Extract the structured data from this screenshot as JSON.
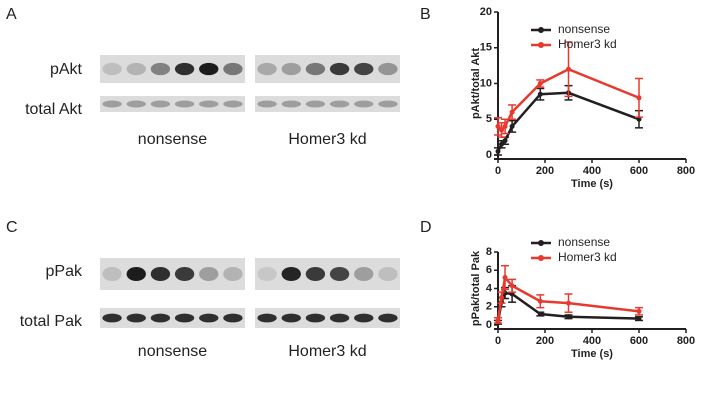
{
  "blots": [
    {
      "letter": "A",
      "rows": [
        "pAkt",
        "total Akt"
      ],
      "groups": [
        "nonsense",
        "Homer3 kd"
      ]
    },
    {
      "letter": "C",
      "rows": [
        "pPak",
        "total Pak"
      ],
      "groups": [
        "nonsense",
        "Homer3 kd"
      ]
    }
  ],
  "chart_data": [
    {
      "type": "line",
      "label": "B",
      "ylabel": "pAkt/total Akt",
      "xlabel": "Time (s)",
      "x": [
        0,
        15,
        30,
        60,
        180,
        300,
        600
      ],
      "series": [
        {
          "name": "nonsense",
          "color": "#231f20",
          "values": [
            0.5,
            1.5,
            2,
            4,
            8.5,
            8.7,
            5
          ],
          "errors": [
            0.5,
            0.5,
            0.5,
            0.8,
            0.8,
            1,
            1.2
          ]
        },
        {
          "name": "Homer3 kd",
          "color": "#e8392f",
          "values": [
            4,
            3.5,
            4,
            6,
            10,
            12,
            8
          ],
          "errors": [
            1.2,
            1,
            1,
            1,
            0.5,
            3.8,
            2.7
          ]
        }
      ],
      "xlim": [
        0,
        800
      ],
      "xticks": [
        0,
        200,
        400,
        600,
        800
      ],
      "ylim": [
        0,
        20
      ],
      "yticks": [
        0,
        5,
        10,
        15,
        20
      ]
    },
    {
      "type": "line",
      "label": "D",
      "ylabel": "pPak/total Pak",
      "xlabel": "Time (s)",
      "x": [
        0,
        15,
        30,
        60,
        180,
        300,
        600
      ],
      "series": [
        {
          "name": "nonsense",
          "color": "#231f20",
          "values": [
            0.3,
            2.5,
            3.5,
            3.4,
            1.2,
            0.9,
            0.7
          ],
          "errors": [
            0.2,
            0.5,
            0.6,
            0.9,
            0.2,
            0.2,
            0.2
          ]
        },
        {
          "name": "Homer3 kd",
          "color": "#e8392f",
          "values": [
            0.5,
            3,
            5.2,
            4.3,
            2.6,
            2.4,
            1.5
          ],
          "errors": [
            0.3,
            0.6,
            1.3,
            0.7,
            0.7,
            1,
            0.4
          ]
        }
      ],
      "xlim": [
        0,
        800
      ],
      "xticks": [
        0,
        200,
        400,
        600,
        800
      ],
      "ylim": [
        0,
        8
      ],
      "yticks": [
        0,
        2,
        4,
        6,
        8
      ]
    }
  ]
}
